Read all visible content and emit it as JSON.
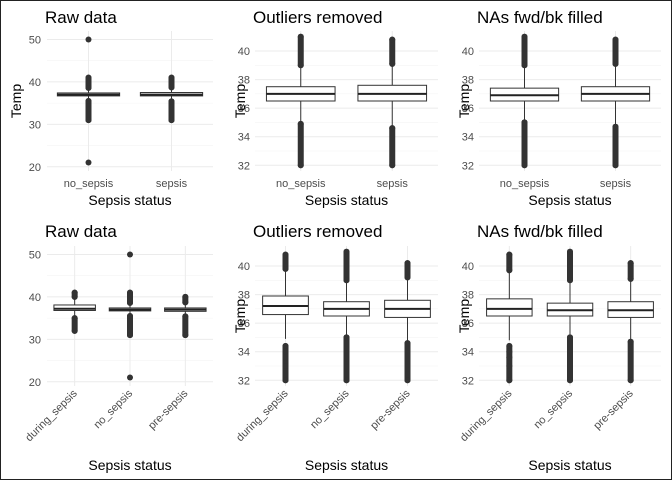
{
  "chart_data": [
    {
      "type": "box",
      "title": "Raw data",
      "xlabel": "Sepsis status",
      "ylabel": "Temp",
      "ylim": [
        19,
        52
      ],
      "yticks": [
        20,
        30,
        40,
        50
      ],
      "rotate_x": false,
      "grid": true,
      "boxes": [
        {
          "category": "no_sepsis",
          "q1": 36.7,
          "median": 37.0,
          "q3": 37.4,
          "whisker_low": 35.6,
          "whisker_high": 38.5,
          "outliers_low": [
            31.0,
            35.5
          ],
          "outliers_high": [
            38.6,
            41.0
          ],
          "extra_points": [
            21,
            50
          ]
        },
        {
          "category": "sepsis",
          "q1": 36.7,
          "median": 37.0,
          "q3": 37.5,
          "whisker_low": 35.5,
          "whisker_high": 38.6,
          "outliers_low": [
            31.0,
            35.4
          ],
          "outliers_high": [
            38.7,
            41.0
          ],
          "extra_points": []
        }
      ]
    },
    {
      "type": "box",
      "title": "Outliers removed",
      "xlabel": "Sepsis status",
      "ylabel": "Temp",
      "ylim": [
        31.6,
        41.4
      ],
      "yticks": [
        32,
        34,
        36,
        38,
        40
      ],
      "rotate_x": false,
      "grid": true,
      "boxes": [
        {
          "category": "no_sepsis",
          "q1": 36.5,
          "median": 37.0,
          "q3": 37.5,
          "whisker_low": 35.0,
          "whisker_high": 38.9,
          "outliers_low": [
            32.0,
            34.9
          ],
          "outliers_high": [
            39.0,
            41.0
          ],
          "extra_points": []
        },
        {
          "category": "sepsis",
          "q1": 36.5,
          "median": 37.0,
          "q3": 37.6,
          "whisker_low": 34.7,
          "whisker_high": 39.0,
          "outliers_low": [
            32.0,
            34.6
          ],
          "outliers_high": [
            39.1,
            40.8
          ],
          "extra_points": []
        }
      ]
    },
    {
      "type": "box",
      "title": "NAs fwd/bk filled",
      "xlabel": "Sepsis status",
      "ylabel": "Temp",
      "ylim": [
        31.6,
        41.4
      ],
      "yticks": [
        32,
        34,
        36,
        38,
        40
      ],
      "rotate_x": false,
      "grid": true,
      "boxes": [
        {
          "category": "no_sepsis",
          "q1": 36.5,
          "median": 36.9,
          "q3": 37.4,
          "whisker_low": 35.1,
          "whisker_high": 38.9,
          "outliers_low": [
            32.0,
            35.0
          ],
          "outliers_high": [
            39.0,
            41.0
          ],
          "extra_points": []
        },
        {
          "category": "sepsis",
          "q1": 36.5,
          "median": 37.0,
          "q3": 37.5,
          "whisker_low": 34.8,
          "whisker_high": 39.0,
          "outliers_low": [
            32.0,
            34.7
          ],
          "outliers_high": [
            39.1,
            40.8
          ],
          "extra_points": []
        }
      ]
    },
    {
      "type": "box",
      "title": "Raw data",
      "xlabel": "Sepsis status",
      "ylabel": "",
      "ylim": [
        19,
        52
      ],
      "yticks": [
        20,
        30,
        40,
        50
      ],
      "rotate_x": true,
      "grid": true,
      "boxes": [
        {
          "category": "during_sepsis",
          "q1": 36.8,
          "median": 37.2,
          "q3": 38.1,
          "whisker_low": 35.3,
          "whisker_high": 39.7,
          "outliers_low": [
            32.0,
            35.0
          ],
          "outliers_high": [
            40.0,
            41.0
          ],
          "extra_points": []
        },
        {
          "category": "no_sepsis",
          "q1": 36.7,
          "median": 37.0,
          "q3": 37.4,
          "whisker_low": 35.6,
          "whisker_high": 38.5,
          "outliers_low": [
            31.0,
            35.5
          ],
          "outliers_high": [
            38.6,
            41.0
          ],
          "extra_points": [
            21,
            50
          ]
        },
        {
          "category": "pre-sepsis",
          "q1": 36.6,
          "median": 37.0,
          "q3": 37.4,
          "whisker_low": 35.5,
          "whisker_high": 38.6,
          "outliers_low": [
            31.0,
            35.4
          ],
          "outliers_high": [
            38.7,
            40.0
          ],
          "extra_points": []
        }
      ]
    },
    {
      "type": "box",
      "title": "Outliers removed",
      "xlabel": "Sepsis status",
      "ylabel": "Temp",
      "ylim": [
        31.6,
        41.4
      ],
      "yticks": [
        32,
        34,
        36,
        38,
        40
      ],
      "rotate_x": true,
      "grid": true,
      "boxes": [
        {
          "category": "during_sepsis",
          "q1": 36.6,
          "median": 37.2,
          "q3": 37.9,
          "whisker_low": 34.9,
          "whisker_high": 39.7,
          "outliers_low": [
            32.0,
            33.0,
            33.6,
            34.0,
            34.4
          ],
          "outliers_high": [
            39.8,
            40.8
          ],
          "extra_points": []
        },
        {
          "category": "no_sepsis",
          "q1": 36.5,
          "median": 37.0,
          "q3": 37.5,
          "whisker_low": 35.1,
          "whisker_high": 38.9,
          "outliers_low": [
            32.0,
            35.0
          ],
          "outliers_high": [
            39.0,
            41.0
          ],
          "extra_points": []
        },
        {
          "category": "pre-sepsis",
          "q1": 36.4,
          "median": 37.0,
          "q3": 37.6,
          "whisker_low": 34.7,
          "whisker_high": 39.1,
          "outliers_low": [
            32.0,
            34.6
          ],
          "outliers_high": [
            39.2,
            40.2
          ],
          "extra_points": []
        }
      ]
    },
    {
      "type": "box",
      "title": "NAs fwd/bk filled",
      "xlabel": "Sepsis status",
      "ylabel": "Temp",
      "ylim": [
        31.6,
        41.4
      ],
      "yticks": [
        32,
        34,
        36,
        38,
        40
      ],
      "rotate_x": true,
      "grid": true,
      "boxes": [
        {
          "category": "during_sepsis",
          "q1": 36.5,
          "median": 37.0,
          "q3": 37.7,
          "whisker_low": 34.8,
          "whisker_high": 39.6,
          "outliers_low": [
            32.0,
            33.0,
            33.6,
            34.0,
            34.4
          ],
          "outliers_high": [
            39.7,
            40.8
          ],
          "extra_points": []
        },
        {
          "category": "no_sepsis",
          "q1": 36.5,
          "median": 36.9,
          "q3": 37.4,
          "whisker_low": 35.1,
          "whisker_high": 38.9,
          "outliers_low": [
            32.0,
            35.0
          ],
          "outliers_high": [
            39.0,
            41.0
          ],
          "extra_points": []
        },
        {
          "category": "pre-sepsis",
          "q1": 36.4,
          "median": 36.9,
          "q3": 37.5,
          "whisker_low": 34.8,
          "whisker_high": 39.0,
          "outliers_low": [
            32.0,
            34.7
          ],
          "outliers_high": [
            39.1,
            40.2
          ],
          "extra_points": []
        }
      ]
    }
  ]
}
